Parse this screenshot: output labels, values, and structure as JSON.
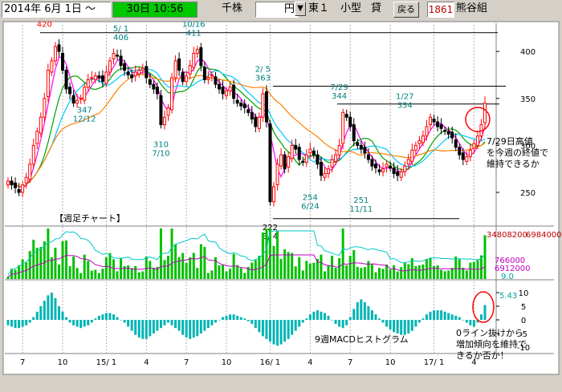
{
  "toolbar": {
    "date_label": "2014年 6月 1日 ～",
    "period_label": "30日 10:56",
    "unit_label": "千株",
    "currency_label": "円",
    "market_label": "東１",
    "size_label": "小型",
    "margin_label": "貸",
    "back_label": "戻る",
    "code_label": "1861",
    "name_label": "熊谷組"
  },
  "colors": {
    "candle_up": "#ff0000",
    "candle_down": "#000000",
    "ma_short": "#ff00ff",
    "ma_mid": "#00a000",
    "ma_long": "#00c8ff",
    "ma_longest": "#ff8000",
    "volume": "#00c000",
    "volume_avg": "#00c8c8",
    "hist": "#00b4b4",
    "annot_circle": "#ff0000",
    "tick_blue": "#008080"
  },
  "chart_data": [
    {
      "type": "candlestick",
      "title": "【週足チャート】",
      "y_ticks": [
        250,
        300,
        350,
        400
      ],
      "ylim": [
        215,
        430
      ],
      "x_ticks": [
        "7",
        "10",
        "15/ 1",
        "4",
        "7",
        "10",
        "16/ 1",
        "4",
        "7",
        "10",
        "17/ 1",
        "4"
      ],
      "annotations": [
        {
          "date": "9/ 5",
          "value": "420",
          "color": "#ff0000"
        },
        {
          "date": "5/ 1",
          "value": "406",
          "color": "#008080"
        },
        {
          "date": "10/16",
          "value": "411",
          "color": "#008080"
        },
        {
          "date": "2/ 5",
          "value": "363",
          "color": "#008080"
        },
        {
          "date": "7/29",
          "value": "344",
          "color": "#008080"
        },
        {
          "date": "1/27",
          "value": "334",
          "color": "#008080"
        },
        {
          "date": "12/12",
          "value": "347",
          "color": "#008080"
        },
        {
          "date": "7/10",
          "value": "310",
          "color": "#008080"
        },
        {
          "date": "6/24",
          "value": "254",
          "color": "#008080"
        },
        {
          "date": "11/11",
          "value": "251",
          "color": "#008080"
        },
        {
          "date": "3/ 4",
          "value": "222",
          "color": "#000000"
        }
      ],
      "note": "7/29日高値を今週の終値で維持できるか",
      "close": [
        262,
        258,
        255,
        250,
        258,
        266,
        280,
        300,
        315,
        330,
        350,
        380,
        390,
        405,
        400,
        380,
        360,
        355,
        345,
        348,
        350,
        362,
        370,
        372,
        374,
        372,
        368,
        378,
        390,
        398,
        395,
        385,
        380,
        375,
        372,
        378,
        380,
        382,
        372,
        365,
        360,
        355,
        322,
        330,
        340,
        372,
        390,
        380,
        368,
        374,
        385,
        398,
        402,
        385,
        370,
        372,
        375,
        365,
        360,
        355,
        358,
        362,
        350,
        345,
        342,
        340,
        335,
        328,
        320,
        330,
        355,
        325,
        240,
        256,
        280,
        290,
        275,
        288,
        300,
        296,
        285,
        282,
        290,
        296,
        290,
        280,
        268,
        270,
        275,
        285,
        290,
        300,
        335,
        330,
        320,
        305,
        300,
        296,
        292,
        285,
        278,
        276,
        272,
        275,
        280,
        276,
        270,
        268,
        272,
        278,
        285,
        295,
        300,
        305,
        310,
        320,
        330,
        325,
        320,
        318,
        315,
        312,
        308,
        298,
        290,
        285,
        288,
        295,
        302,
        310,
        322,
        345
      ]
    },
    {
      "type": "bar",
      "title": "",
      "ylabel": "",
      "labels": [
        "34808200",
        "6984000",
        "766000",
        "6912000",
        "9.0"
      ]
    },
    {
      "type": "bar",
      "title": "9週MACDヒストグラム",
      "y_ticks": [
        "10",
        "5",
        "0",
        "-5",
        "-10"
      ],
      "ylim": [
        -10,
        10
      ],
      "latest_label": "5.43",
      "note": "0ライン抜けから増加傾向を維持できるか否か！",
      "values": [
        -2,
        -2.5,
        -3,
        -3,
        -2.5,
        -2,
        -1,
        1,
        3,
        5,
        7,
        9,
        10,
        8,
        5,
        3,
        1,
        -1,
        -2,
        -2.5,
        -3,
        -2.5,
        -2,
        -1,
        0.5,
        1.5,
        2,
        2.5,
        2.5,
        2,
        1,
        0,
        -1,
        -2.5,
        -4,
        -5.5,
        -6.5,
        -7,
        -7,
        -6,
        -5,
        -4,
        -3,
        -2,
        -1,
        -2,
        -3,
        -4,
        -5.5,
        -6.5,
        -7,
        -6.5,
        -6,
        -5,
        -4,
        -3,
        -2,
        -1,
        0,
        1,
        1.5,
        2,
        2,
        1.5,
        1,
        0.5,
        -0.5,
        -1.5,
        -3,
        -4.5,
        -6,
        -7,
        -8,
        -9,
        -9.5,
        -9,
        -8,
        -7,
        -5.5,
        -4,
        -2.5,
        -1,
        0.5,
        2,
        3,
        3.5,
        3,
        2.5,
        1.5,
        0,
        -1.5,
        -2.5,
        -3,
        -2,
        1,
        4,
        6.5,
        7.5,
        6.5,
        5,
        3.5,
        2,
        0.5,
        -1,
        -2.5,
        -3.5,
        -4.5,
        -5,
        -5.5,
        -5.5,
        -5,
        -4,
        -2.5,
        -1,
        0.5,
        2,
        3,
        3.5,
        3.5,
        3.5,
        3,
        2.5,
        2,
        1.5,
        1,
        0,
        -1,
        -2,
        -2.5,
        -1,
        2,
        5.43
      ]
    }
  ]
}
